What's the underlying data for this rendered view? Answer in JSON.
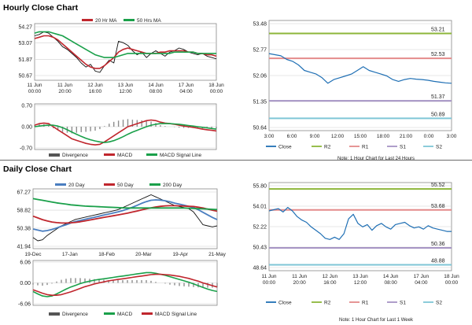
{
  "titles": {
    "hourly": "Hourly Close Chart",
    "daily": "Daily Close Chart"
  },
  "colors": {
    "ma_short": "#c0262d",
    "ma_long": "#1aa04a",
    "price": "#111111",
    "macd": "#c0262d",
    "signal": "#1aa04a",
    "divergence": "#8c8c8c",
    "close_line": "#1f6fb4",
    "r2": "#8db63a",
    "r1": "#e48b8b",
    "s1": "#a694c4",
    "s2": "#7fc6d6",
    "grid": "#d0d0d0"
  },
  "chart_data": [
    {
      "id": "hourly_price",
      "type": "line",
      "x_tick_labels": [
        "11 Jun\n00:00",
        "11 Jun\n20:00",
        "12 Jun\n16:00",
        "13 Jun\n12:00",
        "14 Jun\n08:00",
        "17 Jun\n04:00",
        "18 Jun\n00:00"
      ],
      "y_tick_labels": [
        "54.27",
        "53.07",
        "51.87",
        "50.67"
      ],
      "ylim": [
        50.67,
        54.27
      ],
      "series": [
        {
          "name": "price",
          "values": [
            53.6,
            53.7,
            53.9,
            53.8,
            53.5,
            53.2,
            52.8,
            52.6,
            52.3,
            52.0,
            51.6,
            51.3,
            51.5,
            51.0,
            50.9,
            51.4,
            51.8,
            51.6,
            53.2,
            53.1,
            52.9,
            52.5,
            52.2,
            52.4,
            52.0,
            52.3,
            52.5,
            52.3,
            52.1,
            52.4,
            52.5,
            52.7,
            52.6,
            52.4,
            52.3,
            52.2,
            52.3,
            52.1,
            52.0,
            51.9
          ]
        },
        {
          "name": "20 Hr MA",
          "values": [
            53.4,
            53.5,
            53.6,
            53.6,
            53.5,
            53.3,
            53.0,
            52.7,
            52.4,
            52.1,
            51.8,
            51.5,
            51.3,
            51.2,
            51.2,
            51.4,
            51.7,
            52.0,
            52.4,
            52.6,
            52.7,
            52.6,
            52.5,
            52.4,
            52.3,
            52.3,
            52.3,
            52.4,
            52.4,
            52.5,
            52.5,
            52.5,
            52.5,
            52.4,
            52.4,
            52.3,
            52.3,
            52.2,
            52.2,
            52.1
          ]
        },
        {
          "name": "50 Hrs MA",
          "values": [
            53.8,
            53.9,
            53.9,
            53.9,
            53.8,
            53.7,
            53.6,
            53.4,
            53.2,
            53.0,
            52.8,
            52.6,
            52.4,
            52.2,
            52.1,
            52.0,
            52.0,
            52.0,
            52.1,
            52.2,
            52.3,
            52.3,
            52.3,
            52.3,
            52.3,
            52.3,
            52.3,
            52.3,
            52.3,
            52.3,
            52.4,
            52.4,
            52.4,
            52.4,
            52.4,
            52.3,
            52.3,
            52.3,
            52.3,
            52.3
          ]
        }
      ]
    },
    {
      "id": "hourly_macd",
      "type": "line",
      "y_tick_labels": [
        "0.70",
        "0.00",
        "-0.70"
      ],
      "ylim": [
        -0.7,
        0.7
      ],
      "legend": [
        "Divergence",
        "MACD",
        "MACD Signal Line"
      ],
      "series": [
        {
          "name": "MACD",
          "values": [
            0.05,
            0.1,
            0.12,
            0.1,
            0.0,
            -0.1,
            -0.2,
            -0.3,
            -0.4,
            -0.45,
            -0.5,
            -0.55,
            -0.58,
            -0.6,
            -0.58,
            -0.5,
            -0.4,
            -0.3,
            -0.2,
            -0.1,
            0.0,
            0.05,
            0.1,
            0.15,
            0.2,
            0.22,
            0.2,
            0.15,
            0.12,
            0.1,
            0.08,
            0.05,
            0.02,
            0.0,
            -0.02,
            -0.05,
            -0.08,
            -0.1,
            -0.12,
            -0.14
          ]
        },
        {
          "name": "MACD Signal Line",
          "values": [
            0.0,
            0.02,
            0.04,
            0.05,
            0.05,
            0.02,
            -0.03,
            -0.1,
            -0.18,
            -0.25,
            -0.32,
            -0.38,
            -0.43,
            -0.47,
            -0.5,
            -0.52,
            -0.5,
            -0.46,
            -0.4,
            -0.33,
            -0.25,
            -0.18,
            -0.12,
            -0.06,
            0.0,
            0.05,
            0.08,
            0.1,
            0.1,
            0.1,
            0.09,
            0.08,
            0.06,
            0.04,
            0.02,
            0.0,
            -0.02,
            -0.04,
            -0.06,
            -0.08
          ]
        }
      ]
    },
    {
      "id": "hourly_levels",
      "type": "line",
      "x_tick_labels": [
        "3:00",
        "6:00",
        "9:00",
        "12:00",
        "15:00",
        "18:00",
        "21:00",
        "0:00",
        "3:00"
      ],
      "y_tick_labels": [
        "53.48",
        "52.77",
        "52.06",
        "51.35",
        "50.64"
      ],
      "ylim": [
        50.64,
        53.48
      ],
      "levels": [
        {
          "name": "R2",
          "value": 53.21,
          "label": "53.21"
        },
        {
          "name": "R1",
          "value": 52.53,
          "label": "52.53"
        },
        {
          "name": "S1",
          "value": 51.37,
          "label": "51.37"
        },
        {
          "name": "S2",
          "value": 50.89,
          "label": "50.89"
        }
      ],
      "series": [
        {
          "name": "Close",
          "values": [
            52.66,
            52.63,
            52.6,
            52.5,
            52.45,
            52.35,
            52.2,
            52.15,
            52.1,
            52.0,
            51.85,
            51.95,
            52.0,
            52.05,
            52.1,
            52.2,
            52.3,
            52.2,
            52.15,
            52.1,
            52.05,
            51.95,
            51.9,
            51.95,
            51.98,
            51.96,
            51.95,
            51.93,
            51.9,
            51.88,
            51.86,
            51.85
          ]
        }
      ],
      "legend": [
        "Close",
        "R2",
        "R1",
        "S1",
        "S2"
      ],
      "note": "Note: 1 Hour Chart for Last 24 Hours"
    },
    {
      "id": "daily_price",
      "type": "line",
      "x_tick_labels": [
        "19-Dec",
        "17-Jan",
        "18-Feb",
        "20-Mar",
        "19-Apr",
        "21-May"
      ],
      "y_tick_labels": [
        "67.27",
        "58.82",
        "50.38",
        "41.94"
      ],
      "ylim": [
        41.94,
        67.27
      ],
      "series": [
        {
          "name": "price",
          "values": [
            46,
            44.5,
            45,
            47,
            48.5,
            50,
            51.5,
            52.5,
            53.5,
            54.5,
            55,
            55.5,
            56,
            56.5,
            57,
            57.5,
            58,
            58.5,
            59,
            60,
            61,
            62,
            63,
            64,
            65,
            66,
            65,
            64,
            63,
            62,
            61,
            60.5,
            60,
            59.5,
            58,
            55,
            52,
            51.5,
            51,
            51.5
          ]
        },
        {
          "name": "20 Day",
          "values": [
            50,
            49.5,
            49,
            49.3,
            49.8,
            50.5,
            51.3,
            52,
            52.8,
            53.5,
            54,
            54.5,
            55,
            55.5,
            56,
            56.5,
            57,
            57.5,
            58,
            58.6,
            59.3,
            60.1,
            61,
            62,
            62.8,
            63.4,
            63.6,
            63.5,
            63.2,
            62.7,
            62.1,
            61.6,
            61.1,
            60.6,
            60,
            59,
            57.8,
            56.6,
            55.4,
            54.4
          ]
        },
        {
          "name": "50 Day",
          "values": [
            56,
            55.2,
            54.4,
            53.8,
            53.3,
            53,
            52.8,
            52.8,
            52.9,
            53.1,
            53.4,
            53.8,
            54.2,
            54.6,
            55,
            55.4,
            55.8,
            56.2,
            56.6,
            57,
            57.4,
            57.9,
            58.4,
            58.9,
            59.4,
            59.9,
            60.3,
            60.6,
            60.8,
            60.9,
            60.9,
            60.8,
            60.7,
            60.6,
            60.5,
            60.2,
            59.8,
            59.3,
            58.8,
            58.3
          ]
        },
        {
          "name": "200 Day",
          "values": [
            64.2,
            63.8,
            63.4,
            63,
            62.6,
            62.2,
            61.9,
            61.6,
            61.3,
            61.1,
            60.9,
            60.7,
            60.6,
            60.5,
            60.4,
            60.3,
            60.2,
            60.1,
            60,
            59.9,
            59.8,
            59.8,
            59.8,
            59.8,
            59.8,
            59.8,
            59.8,
            59.8,
            59.8,
            59.8,
            59.8,
            59.8,
            59.8,
            59.7,
            59.6,
            59.5,
            59.4,
            59.3,
            59.2,
            59.1
          ]
        }
      ]
    },
    {
      "id": "daily_macd",
      "type": "line",
      "y_tick_labels": [
        "6.06",
        "0.00",
        "-6.06"
      ],
      "ylim": [
        -6.06,
        6.06
      ],
      "legend": [
        "Divergence",
        "MACD",
        "MACD Signal Line"
      ],
      "series": [
        {
          "name": "MACD",
          "values": [
            -2.5,
            -3.2,
            -3.8,
            -4,
            -3.8,
            -3.2,
            -2.5,
            -1.8,
            -1.2,
            -0.7,
            -0.2,
            0.2,
            0.5,
            0.8,
            1,
            1.2,
            1.4,
            1.6,
            1.8,
            2,
            2.2,
            2.4,
            2.6,
            2.8,
            3,
            3,
            2.8,
            2.5,
            2.2,
            1.8,
            1.4,
            1,
            0.6,
            0.2,
            -0.3,
            -0.8,
            -1.3,
            -1.8,
            -2.2,
            -2.5
          ]
        },
        {
          "name": "MACD Signal Line",
          "values": [
            -2,
            -2.5,
            -3,
            -3.4,
            -3.6,
            -3.6,
            -3.4,
            -3,
            -2.6,
            -2.1,
            -1.6,
            -1.1,
            -0.7,
            -0.3,
            0,
            0.3,
            0.6,
            0.8,
            1,
            1.2,
            1.4,
            1.6,
            1.8,
            2,
            2.2,
            2.4,
            2.5,
            2.5,
            2.4,
            2.3,
            2.1,
            1.9,
            1.6,
            1.3,
            0.9,
            0.5,
            0,
            -0.4,
            -0.8,
            -1.2
          ]
        }
      ]
    },
    {
      "id": "daily_levels",
      "type": "line",
      "x_tick_labels": [
        "11 Jun\n00:00",
        "11 Jun\n20:00",
        "12 Jun\n16:00",
        "13 Jun\n12:00",
        "14 Jun\n08:00",
        "17 Jun\n04:00",
        "18 Jun\n00:00"
      ],
      "y_tick_labels": [
        "55.80",
        "54.01",
        "52.22",
        "50.43",
        "48.64"
      ],
      "ylim": [
        48.64,
        55.8
      ],
      "levels": [
        {
          "name": "R2",
          "value": 55.52,
          "label": "55.52"
        },
        {
          "name": "R1",
          "value": 53.68,
          "label": "53.68"
        },
        {
          "name": "S1",
          "value": 50.36,
          "label": "50.36"
        },
        {
          "name": "S2",
          "value": 48.88,
          "label": "48.88"
        }
      ],
      "series": [
        {
          "name": "Close",
          "values": [
            53.6,
            53.7,
            53.8,
            53.5,
            53.9,
            53.6,
            53.1,
            52.8,
            52.6,
            52.2,
            51.9,
            51.6,
            51.2,
            51.1,
            51.3,
            51.1,
            51.6,
            52.9,
            53.3,
            52.5,
            52.2,
            52.4,
            51.9,
            52.3,
            52.5,
            52.2,
            52.0,
            52.4,
            52.5,
            52.6,
            52.3,
            52.1,
            52.2,
            52.0,
            52.3,
            52.1,
            52.0,
            51.9,
            51.8,
            51.8
          ]
        }
      ],
      "legend": [
        "Close",
        "R2",
        "R1",
        "S1",
        "S2"
      ],
      "note": "Note: 1 Hour Chart for Last 1 Week"
    }
  ]
}
